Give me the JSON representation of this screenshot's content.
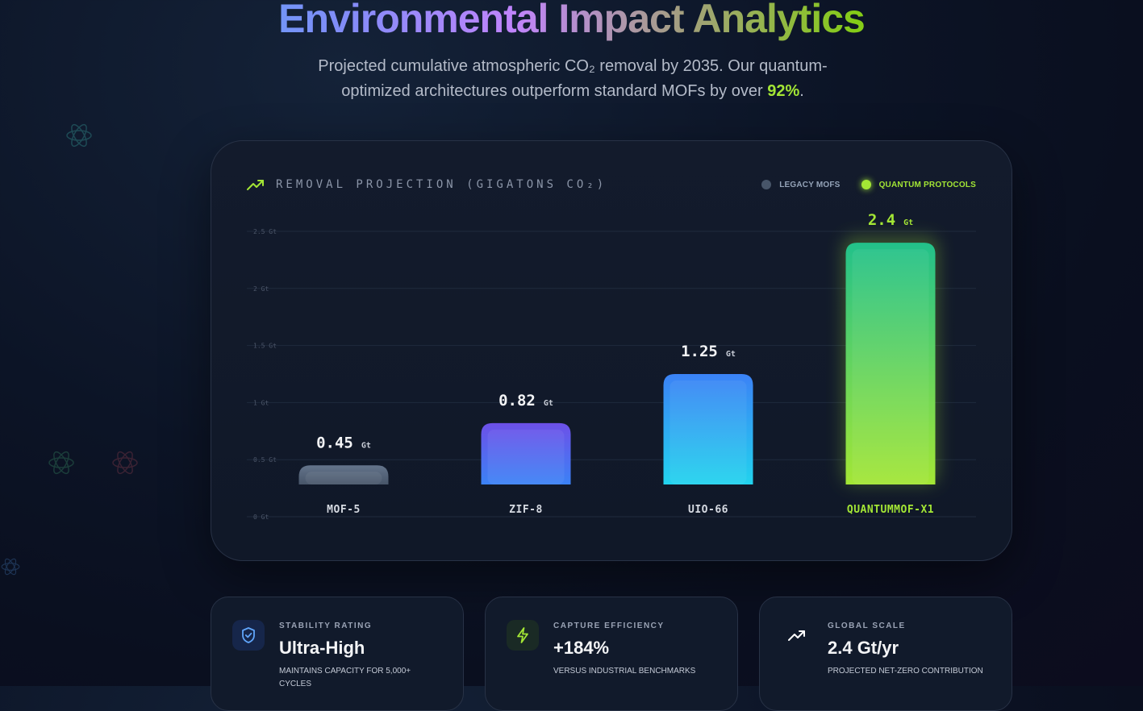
{
  "header": {
    "title": "Environmental Impact Analytics",
    "subtitle_pre": "Projected cumulative atmospheric CO₂ removal by 2035. Our quantum-optimized architectures outperform standard MOFs by over ",
    "subtitle_highlight": "92%",
    "subtitle_post": "."
  },
  "card": {
    "title": "REMOVAL PROJECTION (GIGATONS CO₂)",
    "legend": [
      {
        "label": "LEGACY MOFS",
        "color": "#475569"
      },
      {
        "label": "QUANTUM PROTOCOLS",
        "color": "#a3e635"
      }
    ]
  },
  "chart_data": {
    "type": "bar",
    "title": "REMOVAL PROJECTION (GIGATONS CO₂)",
    "categories": [
      "MOF-5",
      "ZIF-8",
      "UIO-66",
      "QUANTUMMOF-X1"
    ],
    "values": [
      0.45,
      0.82,
      1.25,
      2.4
    ],
    "unit": "Gt",
    "ylim": [
      0,
      2.5
    ],
    "yticks": [
      0,
      0.5,
      1,
      1.5,
      2,
      2.5
    ],
    "ytick_labels": [
      "0 Gt",
      "0.5 Gt",
      "1 Gt",
      "1.5 Gt",
      "2 Gt",
      "2.5 Gt"
    ],
    "grid": true,
    "legend_position": "top-right",
    "bar_colors": [
      [
        "#64748b",
        "#475569"
      ],
      [
        "#6d50e8",
        "#3b82f6"
      ],
      [
        "#3b82f6",
        "#22d3ee"
      ],
      [
        "#22c18a",
        "#a3e635"
      ]
    ],
    "highlight_category": "QUANTUMMOF-X1",
    "highlight_color": "#a3e635"
  },
  "metrics": [
    {
      "label": "STABILITY RATING",
      "value": "Ultra-High",
      "desc": "MAINTAINS CAPACITY FOR 5,000+ CYCLES",
      "icon": "shield-check-icon",
      "icon_color": "#60a5fa",
      "icon_bg": "#16264a"
    },
    {
      "label": "CAPTURE EFFICIENCY",
      "value": "+184%",
      "desc": "VERSUS INDUSTRIAL BENCHMARKS",
      "icon": "lightning-icon",
      "icon_color": "#a3e635",
      "icon_bg": "#1a2a25"
    },
    {
      "label": "GLOBAL SCALE",
      "value": "2.4 Gt/yr",
      "desc": "PROJECTED NET-ZERO CONTRIBUTION",
      "icon": "trending-up-icon",
      "icon_color": "#ffffff",
      "icon_bg": "transparent"
    }
  ]
}
